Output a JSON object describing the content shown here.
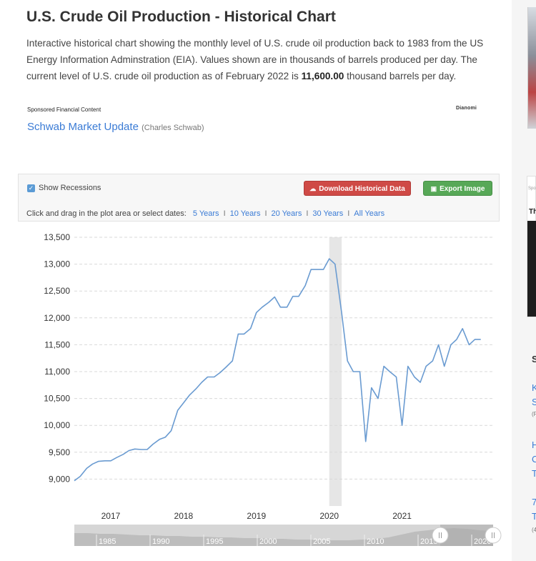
{
  "page": {
    "title": "U.S. Crude Oil Production - Historical Chart",
    "desc_before": "Interactive historical chart showing the monthly level of U.S. crude oil production back to 1983 from the US Energy Information Adminstration (EIA). Values shown are in thousands of barrels produced per day. The current level of U.S. crude oil production as of February 2022 is ",
    "desc_value": "11,600.00",
    "desc_after": " thousand barrels per day."
  },
  "sponsor": {
    "label": "Sponsored Financial Content",
    "brand": "Dianomi",
    "link_text": "Schwab Market Update",
    "link_source": "(Charles Schwab)"
  },
  "toolbar": {
    "show_recessions": "Show Recessions",
    "download_label": "Download Historical Data",
    "export_label": "Export Image",
    "range_prompt": "Click and drag in the plot area or select dates:",
    "ranges": [
      "5 Years",
      "10 Years",
      "20 Years",
      "30 Years",
      "All Years"
    ]
  },
  "sidebar": {
    "tiny": "Spo",
    "heading": "Th",
    "links": [
      "S",
      "K",
      "S",
      "(F",
      "H",
      "C",
      "T",
      "7",
      "T",
      "(4"
    ]
  },
  "colors": {
    "line": "#6a9bd1",
    "recession": "#e6e6e6",
    "grid": "#d9d9d9"
  },
  "chart_data": {
    "type": "line",
    "title": "",
    "xlabel": "",
    "ylabel": "",
    "ylim": [
      8500,
      13500
    ],
    "yticks": [
      9000,
      9500,
      10000,
      10500,
      11000,
      11500,
      12000,
      12500,
      13000,
      13500
    ],
    "ytick_labels": [
      "9,000",
      "9,500",
      "10,000",
      "10,500",
      "11,000",
      "11,500",
      "12,000",
      "12,500",
      "13,000",
      "13,500"
    ],
    "xlim": [
      2016.5,
      2022.25
    ],
    "xticks": [
      2017,
      2018,
      2019,
      2020,
      2021
    ],
    "xtick_labels": [
      "2017",
      "2018",
      "2019",
      "2020",
      "2021"
    ],
    "grid": "horizontal dashed",
    "recession": [
      2020.0,
      2020.17
    ],
    "series": [
      {
        "name": "",
        "x": [
          2016.5,
          2016.58,
          2016.67,
          2016.75,
          2016.83,
          2016.92,
          2017.0,
          2017.08,
          2017.17,
          2017.25,
          2017.33,
          2017.42,
          2017.5,
          2017.58,
          2017.67,
          2017.75,
          2017.83,
          2017.92,
          2018.0,
          2018.08,
          2018.17,
          2018.25,
          2018.33,
          2018.42,
          2018.5,
          2018.58,
          2018.67,
          2018.75,
          2018.83,
          2018.92,
          2019.0,
          2019.08,
          2019.17,
          2019.25,
          2019.33,
          2019.42,
          2019.5,
          2019.58,
          2019.67,
          2019.75,
          2019.83,
          2019.92,
          2020.0,
          2020.08,
          2020.17,
          2020.25,
          2020.33,
          2020.42,
          2020.5,
          2020.58,
          2020.67,
          2020.75,
          2020.83,
          2020.92,
          2021.0,
          2021.08,
          2021.17,
          2021.25,
          2021.33,
          2021.42,
          2021.5,
          2021.58,
          2021.67,
          2021.75,
          2021.83,
          2021.92,
          2022.0,
          2022.08
        ],
        "values": [
          8970,
          9050,
          9200,
          9280,
          9330,
          9340,
          9340,
          9400,
          9460,
          9530,
          9560,
          9550,
          9550,
          9650,
          9740,
          9780,
          9900,
          10280,
          10420,
          10560,
          10680,
          10800,
          10900,
          10900,
          10980,
          11080,
          11200,
          11700,
          11700,
          11800,
          12100,
          12200,
          12290,
          12390,
          12200,
          12200,
          12400,
          12400,
          12600,
          12900,
          12900,
          12900,
          13100,
          13000,
          12100,
          11200,
          11000,
          11000,
          9700,
          10700,
          10500,
          11100,
          11000,
          10900,
          10000,
          11100,
          10900,
          10800,
          11100,
          11200,
          11500,
          11100,
          11500,
          11600,
          11800,
          11500,
          11600,
          11600
        ]
      }
    ],
    "navigator": {
      "labels": [
        "1985",
        "1990",
        "1995",
        "2000",
        "2005",
        "2010",
        "2015",
        "2020"
      ]
    }
  }
}
